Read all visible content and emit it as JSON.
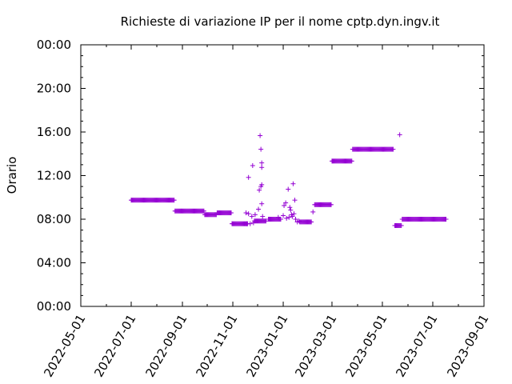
{
  "chart_data": {
    "type": "scatter",
    "title": "Richieste di variazione IP per il nome cptp.dyn.ingv.it",
    "xlabel": "",
    "ylabel": "Orario",
    "xlim": [
      "2022-05-01",
      "2023-09-01"
    ],
    "ylim": [
      "00:00",
      "24:00"
    ],
    "x_tick_labels": [
      "2022-05-01",
      "2022-07-01",
      "2022-09-01",
      "2022-11-01",
      "2023-01-01",
      "2023-03-01",
      "2023-05-01",
      "2023-07-01",
      "2023-09-01"
    ],
    "y_tick_labels": [
      "00:00",
      "04:00",
      "08:00",
      "12:00",
      "16:00",
      "20:00",
      "00:00"
    ],
    "marker": "+",
    "color": "#9400d3",
    "grid": false,
    "segments": [
      {
        "start": "2022-07-01",
        "end": "2022-08-22",
        "time": "09:45"
      },
      {
        "start": "2022-08-23",
        "end": "2022-09-27",
        "time": "08:45"
      },
      {
        "start": "2022-09-28",
        "end": "2022-10-12",
        "time": "08:25"
      },
      {
        "start": "2022-10-13",
        "end": "2022-10-30",
        "time": "08:35"
      },
      {
        "start": "2022-10-31",
        "end": "2022-11-19",
        "time": "07:35"
      },
      {
        "start": "2022-11-27",
        "end": "2022-12-11",
        "time": "07:50"
      },
      {
        "start": "2022-12-14",
        "end": "2022-12-29",
        "time": "08:00"
      },
      {
        "start": "2023-01-21",
        "end": "2023-02-04",
        "time": "07:45"
      },
      {
        "start": "2023-02-08",
        "end": "2023-02-28",
        "time": "09:20"
      },
      {
        "start": "2023-03-01",
        "end": "2023-03-25",
        "time": "13:20"
      },
      {
        "start": "2023-03-26",
        "end": "2023-05-14",
        "time": "14:25"
      },
      {
        "start": "2023-05-16",
        "end": "2023-05-24",
        "time": "07:25"
      },
      {
        "start": "2023-05-25",
        "end": "2023-07-17",
        "time": "08:00"
      }
    ],
    "points": [
      {
        "x": "2022-11-17",
        "y": "08:35"
      },
      {
        "x": "2022-11-18",
        "y": "07:35"
      },
      {
        "x": "2022-11-20",
        "y": "11:50"
      },
      {
        "x": "2022-11-20",
        "y": "08:30"
      },
      {
        "x": "2022-11-22",
        "y": "07:35"
      },
      {
        "x": "2022-11-24",
        "y": "08:15"
      },
      {
        "x": "2022-11-25",
        "y": "12:55"
      },
      {
        "x": "2022-11-26",
        "y": "07:40"
      },
      {
        "x": "2022-11-28",
        "y": "08:25"
      },
      {
        "x": "2022-12-02",
        "y": "08:55"
      },
      {
        "x": "2022-12-03",
        "y": "10:40"
      },
      {
        "x": "2022-12-04",
        "y": "15:40"
      },
      {
        "x": "2022-12-05",
        "y": "11:00"
      },
      {
        "x": "2022-12-05",
        "y": "14:25"
      },
      {
        "x": "2022-12-06",
        "y": "13:10"
      },
      {
        "x": "2022-12-06",
        "y": "12:45"
      },
      {
        "x": "2022-12-06",
        "y": "11:10"
      },
      {
        "x": "2022-12-06",
        "y": "09:25"
      },
      {
        "x": "2022-12-07",
        "y": "08:15"
      },
      {
        "x": "2022-12-26",
        "y": "08:10"
      },
      {
        "x": "2023-01-01",
        "y": "08:20"
      },
      {
        "x": "2023-01-02",
        "y": "09:15"
      },
      {
        "x": "2023-01-04",
        "y": "09:30"
      },
      {
        "x": "2023-01-05",
        "y": "08:05"
      },
      {
        "x": "2023-01-07",
        "y": "10:45"
      },
      {
        "x": "2023-01-08",
        "y": "08:10"
      },
      {
        "x": "2023-01-09",
        "y": "09:05"
      },
      {
        "x": "2023-01-10",
        "y": "08:50"
      },
      {
        "x": "2023-01-11",
        "y": "08:25"
      },
      {
        "x": "2023-01-12",
        "y": "08:15"
      },
      {
        "x": "2023-01-13",
        "y": "11:15"
      },
      {
        "x": "2023-01-14",
        "y": "08:30"
      },
      {
        "x": "2023-01-15",
        "y": "09:45"
      },
      {
        "x": "2023-01-16",
        "y": "08:00"
      },
      {
        "x": "2023-01-18",
        "y": "07:45"
      },
      {
        "x": "2023-01-20",
        "y": "07:50"
      },
      {
        "x": "2023-02-06",
        "y": "08:40"
      },
      {
        "x": "2023-05-22",
        "y": "15:45"
      }
    ]
  }
}
